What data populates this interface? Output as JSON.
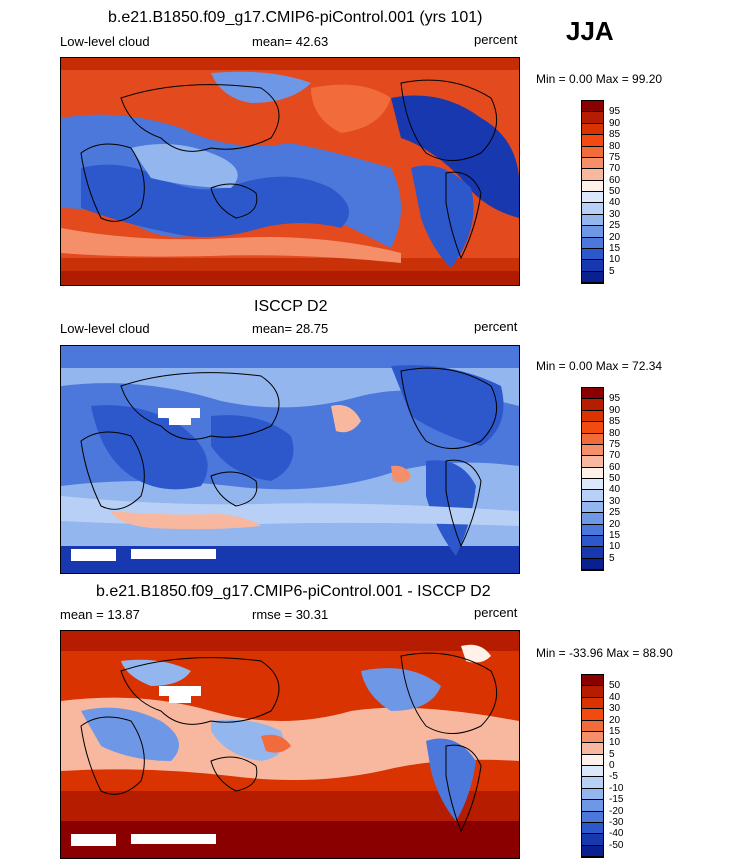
{
  "season": "JJA",
  "panels": [
    {
      "id": "model",
      "title": "b.e21.B1850.f09_g17.CMIP6-piControl.001 (yrs 101)",
      "left_label": "Low-level cloud",
      "stat_label": "mean=  42.63",
      "units": "percent",
      "min_max": "Min =   0.00 Max =   99.20",
      "colorbar": {
        "colors": [
          "#8a0000",
          "#b51c00",
          "#d83300",
          "#f24a10",
          "#f26b3a",
          "#f58f6a",
          "#f8b8a0",
          "#fff0ea",
          "#dbe7fb",
          "#b8d0f5",
          "#93b6ef",
          "#6e98e6",
          "#4b78da",
          "#2d58cc",
          "#1838b0",
          "#0a1f90"
        ],
        "labels": [
          "95",
          "90",
          "85",
          "80",
          "75",
          "70",
          "60",
          "50",
          "40",
          "30",
          "25",
          "20",
          "15",
          "10",
          "5"
        ]
      }
    },
    {
      "id": "obs",
      "title": "ISCCP D2",
      "left_label": "Low-level cloud",
      "stat_label": "mean=  28.75",
      "units": "percent",
      "min_max": "Min =   0.00 Max =   72.34",
      "colorbar": {
        "colors": [
          "#8a0000",
          "#b51c00",
          "#d83300",
          "#f24a10",
          "#f26b3a",
          "#f58f6a",
          "#f8b8a0",
          "#fff0ea",
          "#dbe7fb",
          "#b8d0f5",
          "#93b6ef",
          "#6e98e6",
          "#4b78da",
          "#2d58cc",
          "#1838b0",
          "#0a1f90"
        ],
        "labels": [
          "95",
          "90",
          "85",
          "80",
          "75",
          "70",
          "60",
          "50",
          "40",
          "30",
          "25",
          "20",
          "15",
          "10",
          "5"
        ]
      }
    },
    {
      "id": "diff",
      "title": "b.e21.B1850.f09_g17.CMIP6-piControl.001 - ISCCP D2",
      "left_label": "mean =  13.87",
      "stat_label": "rmse =  30.31",
      "units": "percent",
      "min_max": "Min = -33.96 Max =   88.90",
      "colorbar": {
        "colors": [
          "#8a0000",
          "#b51c00",
          "#d83300",
          "#f24a10",
          "#f26b3a",
          "#f58f6a",
          "#f8b8a0",
          "#fff0ea",
          "#dbe7fb",
          "#b8d0f5",
          "#93b6ef",
          "#6e98e6",
          "#4b78da",
          "#2d58cc",
          "#1838b0",
          "#0a1f90"
        ],
        "labels": [
          "50",
          "40",
          "30",
          "20",
          "15",
          "10",
          "5",
          "0",
          "-5",
          "-10",
          "-15",
          "-20",
          "-30",
          "-40",
          "-50"
        ]
      }
    }
  ]
}
